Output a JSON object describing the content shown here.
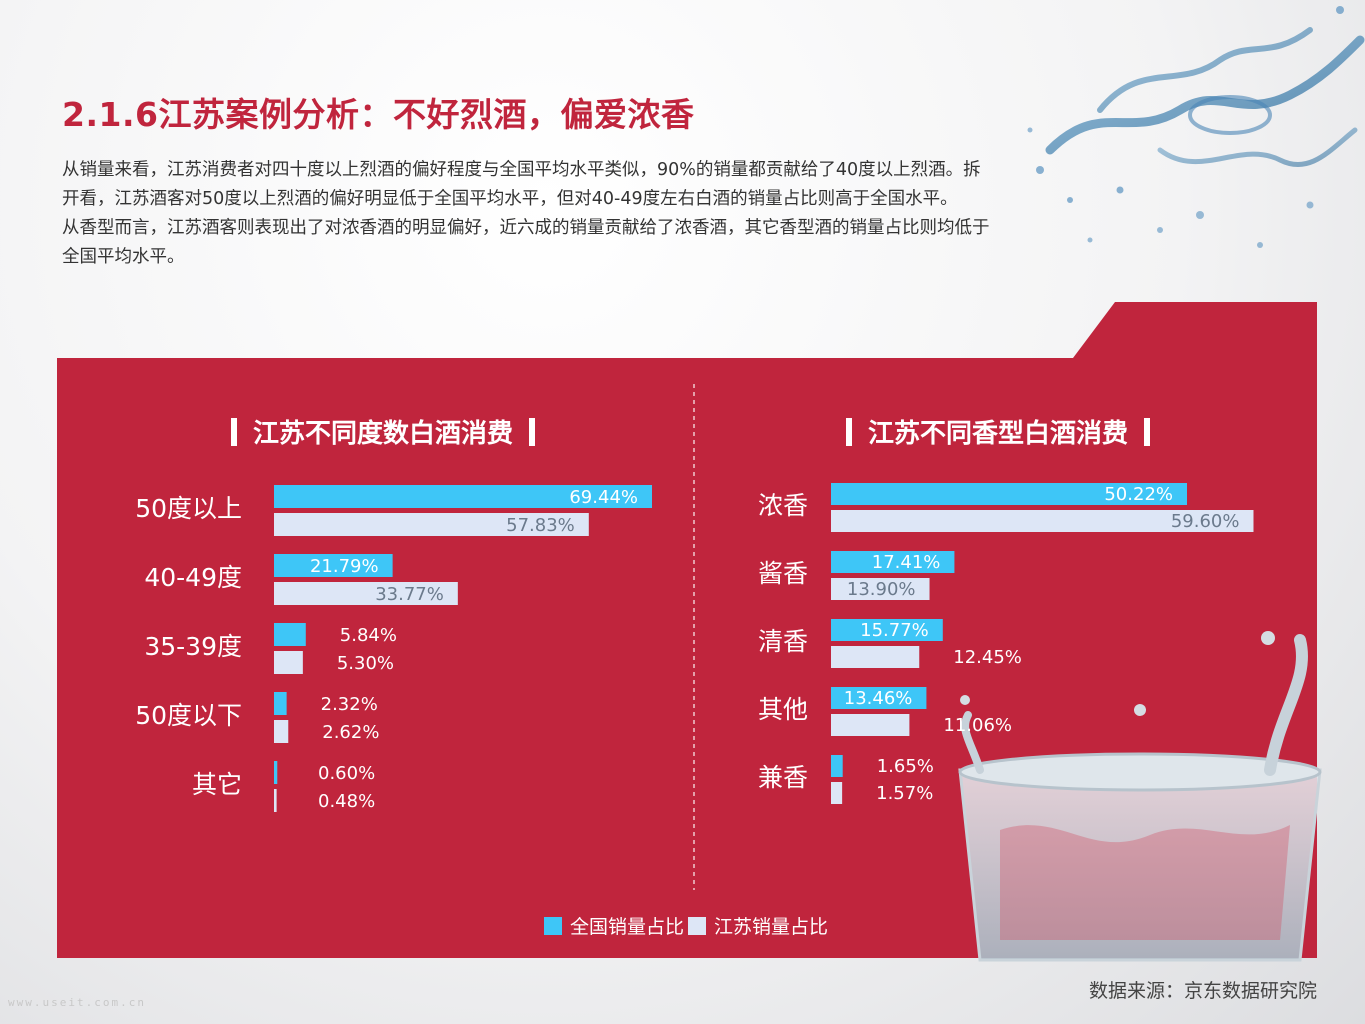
{
  "page": {
    "title": "2.1.6江苏案例分析：不好烈酒，偏爱浓香",
    "paragraphs": [
      "从销量来看，江苏消费者对四十度以上烈酒的偏好程度与全国平均水平类似，90%的销量都贡献给了40度以上烈酒。拆开看，江苏酒客对50度以上烈酒的偏好明显低于全国平均水平，但对40-49度左右白酒的销量占比则高于全国水平。",
      "从香型而言，江苏酒客则表现出了对浓香酒的明显偏好，近六成的销量贡献给了浓香酒，其它香型酒的销量占比则均低于全国平均水平。"
    ],
    "source": "数据来源：京东数据研究院",
    "watermark": "www.useit.com.cn"
  },
  "colors": {
    "panel": "#c0253d",
    "national": "#3ec6f7",
    "jiangsu": "#dde6f6",
    "title": "#c0253d"
  },
  "legend": {
    "national_label": "全国销量占比",
    "jiangsu_label": "江苏销量占比"
  },
  "chart_data": [
    {
      "type": "bar",
      "orientation": "horizontal",
      "title": "江苏不同度数白酒消费",
      "categories": [
        "50度以上",
        "40-49度",
        "35-39度",
        "50度以下",
        "其它"
      ],
      "series": [
        {
          "name": "全国销量占比",
          "values": [
            69.44,
            21.79,
            5.84,
            2.32,
            0.6
          ]
        },
        {
          "name": "江苏销量占比",
          "values": [
            57.83,
            33.77,
            5.3,
            2.62,
            0.48
          ]
        }
      ],
      "value_labels": [
        [
          "69.44%",
          "21.79%",
          "5.84%",
          "2.32%",
          "0.60%"
        ],
        [
          "57.83%",
          "33.77%",
          "5.30%",
          "2.62%",
          "0.48%"
        ]
      ],
      "xlim": [
        0,
        70
      ]
    },
    {
      "type": "bar",
      "orientation": "horizontal",
      "title": "江苏不同香型白酒消费",
      "categories": [
        "浓香",
        "酱香",
        "清香",
        "其他",
        "兼香"
      ],
      "series": [
        {
          "name": "全国销量占比",
          "values": [
            50.22,
            17.41,
            15.77,
            13.46,
            1.65
          ]
        },
        {
          "name": "江苏销量占比",
          "values": [
            59.6,
            13.9,
            12.45,
            11.06,
            1.57
          ]
        }
      ],
      "value_labels": [
        [
          "50.22%",
          "17.41%",
          "15.77%",
          "13.46%",
          "1.65%"
        ],
        [
          "59.60%",
          "13.90%",
          "12.45%",
          "11.06%",
          "1.57%"
        ]
      ],
      "xlim": [
        0,
        60
      ]
    }
  ]
}
